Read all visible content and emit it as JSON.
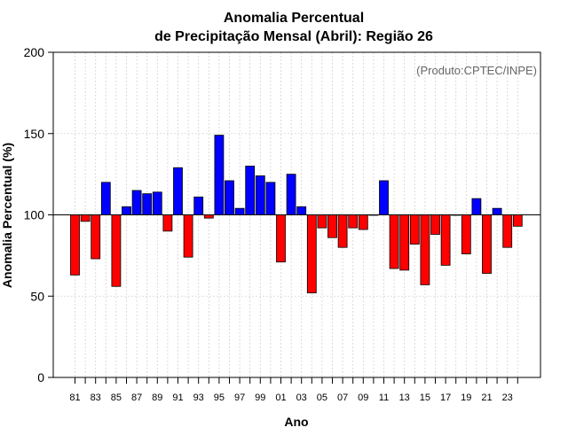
{
  "chart_data": {
    "type": "bar",
    "title_line1": "Anomalia Percentual",
    "title_line2": "de Precipitação Mensal (Abril): Região 26",
    "xlabel": "Ano",
    "ylabel": "Anomalia Percentual (%)",
    "credit": "(Produto:CPTEC/INPE)",
    "baseline": 100,
    "ylim": [
      0,
      200
    ],
    "yticks": [
      "0",
      "50",
      "100",
      "150",
      "200"
    ],
    "xtick_labels": [
      "81",
      "83",
      "85",
      "87",
      "89",
      "91",
      "93",
      "95",
      "97",
      "99",
      "01",
      "03",
      "05",
      "07",
      "09",
      "11",
      "13",
      "15",
      "17",
      "19",
      "21",
      "23"
    ],
    "categories": [
      "81",
      "82",
      "83",
      "84",
      "85",
      "86",
      "87",
      "88",
      "89",
      "90",
      "91",
      "92",
      "93",
      "94",
      "95",
      "96",
      "97",
      "98",
      "99",
      "00",
      "01",
      "02",
      "03",
      "04",
      "05",
      "06",
      "07",
      "08",
      "09",
      "10",
      "11",
      "12",
      "13",
      "14",
      "15",
      "16",
      "17",
      "18",
      "19",
      "20",
      "21",
      "22",
      "23",
      "24"
    ],
    "values": [
      63,
      96,
      73,
      120,
      56,
      105,
      115,
      113,
      114,
      90,
      129,
      74,
      111,
      98,
      149,
      121,
      104,
      130,
      124,
      120,
      71,
      125,
      105,
      52,
      92,
      86,
      80,
      92,
      91,
      100,
      121,
      67,
      66,
      82,
      57,
      88,
      69,
      100,
      76,
      110,
      64,
      104,
      80,
      93
    ],
    "colors": {
      "above": "#0000ff",
      "below": "#ff0000",
      "baseline": "#000000",
      "grid": "#d3d3d3"
    }
  }
}
